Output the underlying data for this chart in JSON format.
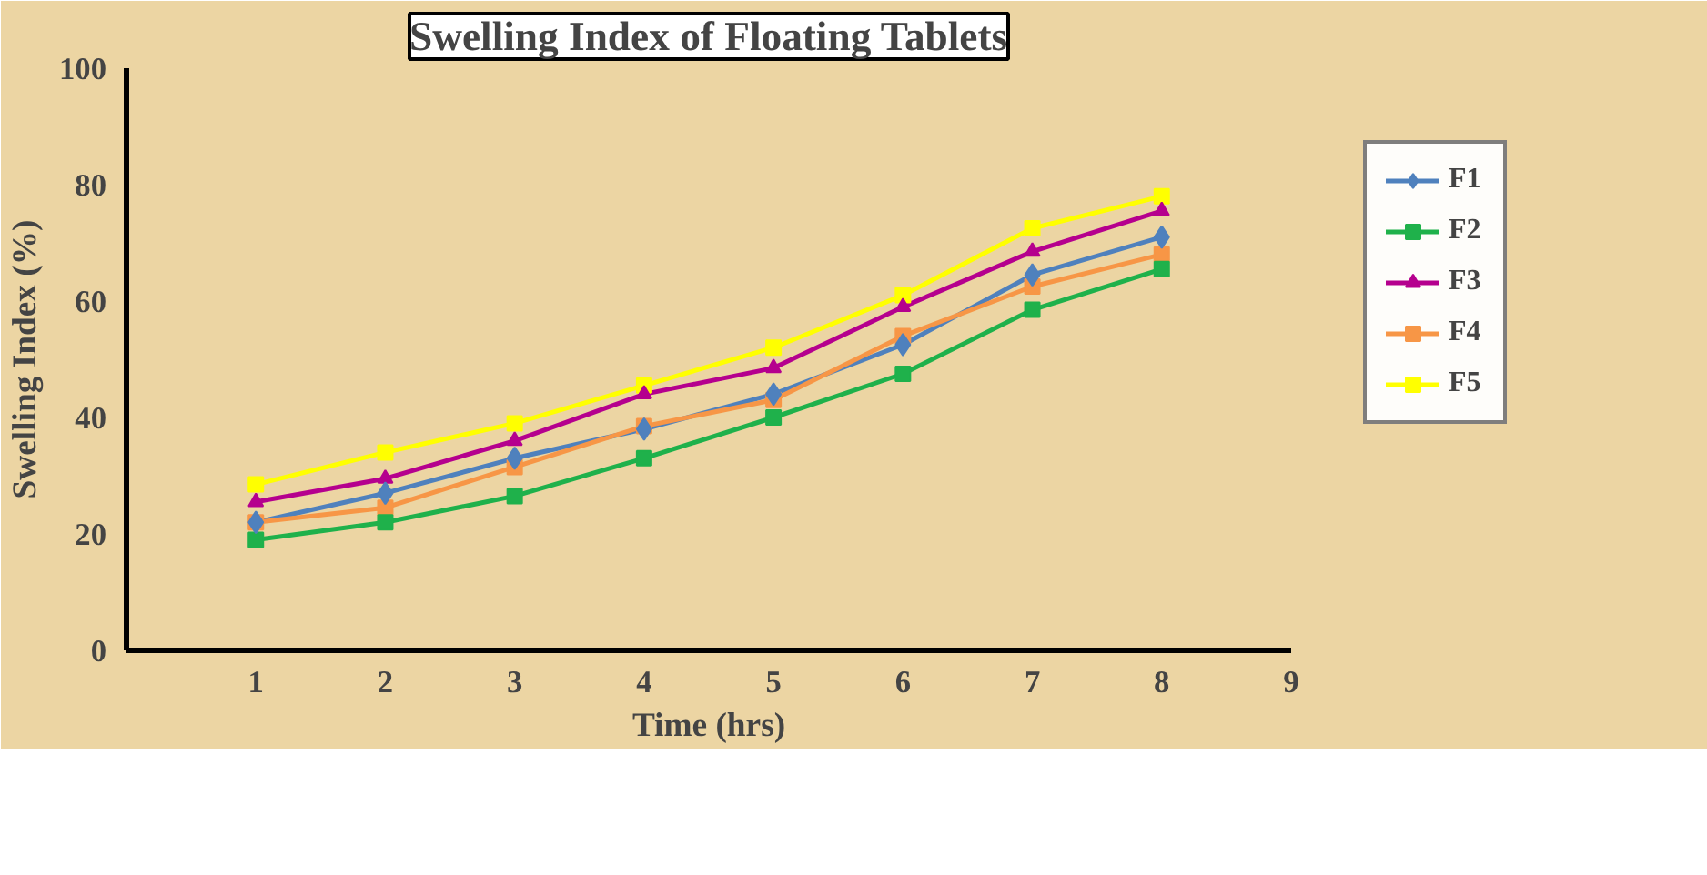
{
  "chart_data": {
    "type": "line",
    "title": "Swelling Index of Floating Tablets",
    "xlabel": "Time (hrs)",
    "ylabel": "Swelling Index (%)",
    "x": [
      1,
      2,
      3,
      4,
      5,
      6,
      7,
      8
    ],
    "series": [
      {
        "name": "F1",
        "color": "#4f81bd",
        "marker": "diamond",
        "values": [
          22,
          27,
          33,
          38,
          44,
          52.5,
          64.5,
          71
        ]
      },
      {
        "name": "F2",
        "color": "#1fb14b",
        "marker": "square",
        "values": [
          19,
          22,
          26.5,
          33,
          40,
          47.5,
          58.5,
          65.5
        ]
      },
      {
        "name": "F3",
        "color": "#b5008e",
        "marker": "triangle",
        "values": [
          25.5,
          29.5,
          36,
          44,
          48.5,
          59,
          68.5,
          75.5
        ]
      },
      {
        "name": "F4",
        "color": "#f79646",
        "marker": "square",
        "values": [
          22,
          24.5,
          31.5,
          38.5,
          43,
          54,
          62.5,
          68
        ]
      },
      {
        "name": "F5",
        "color": "#ffff00",
        "marker": "square",
        "values": [
          28.5,
          34,
          39,
          45.5,
          52,
          61,
          72.5,
          78
        ]
      }
    ],
    "xlim": [
      0,
      9
    ],
    "ylim": [
      0,
      100
    ],
    "xticks": [
      1,
      2,
      3,
      4,
      5,
      6,
      7,
      8,
      9
    ],
    "yticks": [
      0,
      20,
      40,
      60,
      80,
      100
    ],
    "grid": false,
    "legend": "right",
    "line_style": "solid"
  }
}
